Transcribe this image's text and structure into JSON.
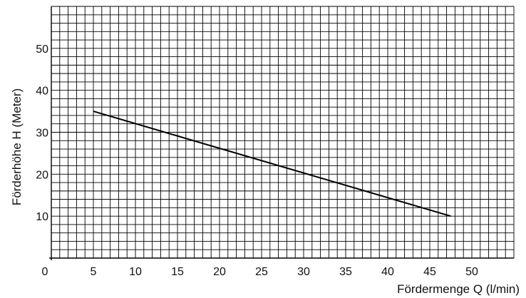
{
  "chart_data": {
    "type": "line",
    "title": "",
    "xlabel": "Fördermenge Q (l/min)",
    "ylabel": "Förderhöhe H (Meter)",
    "xlim": [
      0,
      55
    ],
    "ylim": [
      0,
      60
    ],
    "x_ticks": [
      0,
      5,
      10,
      15,
      20,
      25,
      30,
      35,
      40,
      45,
      50
    ],
    "y_ticks": [
      10,
      20,
      30,
      40,
      50
    ],
    "grid": true,
    "grid_minor_step_x": 1,
    "grid_minor_step_y": 2,
    "series": [
      {
        "x": [
          5,
          47.5
        ],
        "y": [
          35,
          10
        ],
        "color": "#000000"
      }
    ]
  }
}
